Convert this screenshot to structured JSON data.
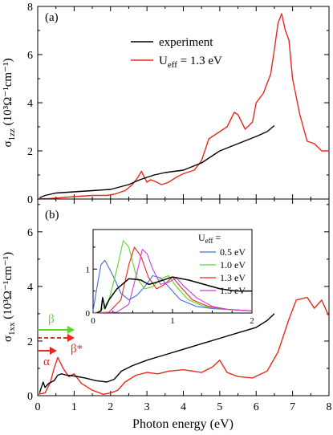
{
  "figure": {
    "xlabel": "Photon energy (eV)",
    "xticks": [
      "0",
      "1",
      "2",
      "3",
      "4",
      "5",
      "6",
      "7",
      "8"
    ]
  },
  "colors": {
    "experiment": "#000000",
    "calc": "#e8281e",
    "u05": "#3a6fd8",
    "u10": "#5ad82a",
    "u13": "#e8281e",
    "u15": "#d03ad8",
    "beta_arrow": "#5ad82a",
    "alpha_arrow": "#e8281e"
  },
  "panel_a": {
    "label": "(a)",
    "ylabel_main": "σ",
    "ylabel_sub": "1zz",
    "ylabel_rest": " (10³Ω⁻¹cm⁻¹)",
    "yticks": [
      "0",
      "2",
      "4",
      "6",
      "8"
    ],
    "legend": {
      "experiment": "experiment",
      "calc_pre": "U",
      "calc_sub": "eff",
      "calc_post": " = 1.3 eV"
    }
  },
  "panel_b": {
    "label": "(b)",
    "ylabel_main": "σ",
    "ylabel_sub": "1xx",
    "ylabel_rest": " (10³Ω⁻¹cm⁻¹)",
    "yticks": [
      "0",
      "2",
      "4",
      "6"
    ],
    "markers": {
      "beta": "β",
      "beta_star": "β*",
      "alpha": "α"
    }
  },
  "inset": {
    "title_pre": "U",
    "title_sub": "eff",
    "title_post": " =",
    "legend": [
      "0.5 eV",
      "1.0 eV",
      "1.3 eV",
      "1.5 eV"
    ],
    "xticks": [
      "0",
      "1",
      "2"
    ],
    "yticks": [
      "0",
      "1"
    ]
  },
  "chart_data": [
    {
      "type": "line",
      "panel": "(a)",
      "xlim": [
        0,
        8
      ],
      "ylim": [
        0,
        8
      ],
      "series": [
        {
          "name": "experiment",
          "x": [
            0.05,
            0.2,
            0.5,
            1.0,
            1.5,
            2.0,
            2.5,
            2.8,
            3.0,
            3.2,
            3.5,
            4.0,
            4.5,
            5.0,
            5.5,
            6.0,
            6.3,
            6.5
          ],
          "y": [
            0.05,
            0.15,
            0.25,
            0.3,
            0.35,
            0.4,
            0.6,
            0.8,
            0.9,
            1.0,
            1.1,
            1.2,
            1.5,
            2.0,
            2.3,
            2.6,
            2.8,
            3.05
          ]
        },
        {
          "name": "U_eff = 1.3 eV",
          "x": [
            0.0,
            0.3,
            0.6,
            1.0,
            1.5,
            1.9,
            2.1,
            2.4,
            2.6,
            2.75,
            2.85,
            3.0,
            3.1,
            3.2,
            3.4,
            3.6,
            3.8,
            4.0,
            4.3,
            4.5,
            4.7,
            4.9,
            5.0,
            5.2,
            5.4,
            5.5,
            5.7,
            5.9,
            6.0,
            6.2,
            6.4,
            6.5,
            6.6,
            6.7,
            6.8,
            6.9,
            7.0,
            7.2,
            7.4,
            7.6,
            7.8,
            8.0
          ],
          "y": [
            0.0,
            0.02,
            0.05,
            0.1,
            0.15,
            0.15,
            0.2,
            0.35,
            0.6,
            0.9,
            1.15,
            0.7,
            0.8,
            0.75,
            0.6,
            0.7,
            0.9,
            1.05,
            1.2,
            1.6,
            2.5,
            2.7,
            2.8,
            3.0,
            3.6,
            3.5,
            2.9,
            3.2,
            4.0,
            4.4,
            5.2,
            6.2,
            7.3,
            7.7,
            7.0,
            6.6,
            5.0,
            3.5,
            2.4,
            2.3,
            2.0,
            2.0
          ]
        }
      ]
    },
    {
      "type": "line",
      "panel": "(b)",
      "xlim": [
        0,
        8
      ],
      "ylim": [
        0,
        7.2
      ],
      "series": [
        {
          "name": "experiment",
          "x": [
            0.05,
            0.1,
            0.15,
            0.2,
            0.3,
            0.45,
            0.55,
            0.65,
            0.8,
            1.0,
            1.3,
            1.6,
            1.9,
            2.1,
            2.3,
            2.6,
            3.0,
            3.5,
            4.0,
            4.5,
            5.0,
            5.5,
            6.0,
            6.3,
            6.5
          ],
          "y": [
            0.1,
            0.3,
            0.5,
            0.3,
            0.45,
            0.55,
            0.75,
            0.8,
            0.75,
            0.72,
            0.65,
            0.55,
            0.5,
            0.6,
            0.9,
            1.1,
            1.3,
            1.5,
            1.7,
            1.9,
            2.1,
            2.3,
            2.5,
            2.75,
            3.0
          ]
        },
        {
          "name": "U_eff = 1.3 eV",
          "x": [
            0.0,
            0.2,
            0.35,
            0.45,
            0.55,
            0.7,
            0.85,
            1.0,
            1.2,
            1.5,
            1.8,
            2.0,
            2.2,
            2.4,
            2.7,
            3.0,
            3.3,
            3.6,
            4.0,
            4.5,
            4.8,
            5.0,
            5.2,
            5.5,
            5.9,
            6.3,
            6.6,
            6.9,
            7.1,
            7.4,
            7.6,
            7.8,
            8.0
          ],
          "y": [
            0.05,
            0.1,
            0.5,
            1.0,
            1.4,
            1.0,
            0.7,
            0.8,
            0.45,
            0.2,
            0.05,
            0.1,
            0.2,
            0.5,
            0.75,
            0.85,
            0.8,
            0.9,
            0.95,
            0.85,
            1.05,
            1.3,
            0.85,
            0.7,
            0.65,
            0.9,
            1.6,
            2.8,
            3.5,
            3.6,
            3.2,
            3.5,
            2.9
          ]
        }
      ]
    },
    {
      "type": "line",
      "panel": "inset",
      "xlim": [
        0,
        2
      ],
      "ylim": [
        0,
        1.9
      ],
      "series": [
        {
          "name": "experiment",
          "x": [
            0.05,
            0.1,
            0.12,
            0.15,
            0.2,
            0.3,
            0.45,
            0.6,
            0.7,
            0.8,
            1.0,
            1.2,
            1.4,
            1.6,
            1.8,
            2.0
          ],
          "y": [
            0.0,
            0.05,
            0.35,
            0.1,
            0.3,
            0.55,
            0.78,
            0.75,
            0.65,
            0.7,
            0.82,
            0.75,
            0.65,
            0.55,
            0.5,
            0.5
          ]
        },
        {
          "name": "0.5 eV",
          "x": [
            0.0,
            0.05,
            0.1,
            0.15,
            0.25,
            0.35,
            0.45,
            0.55,
            0.65,
            0.75,
            0.85,
            0.95,
            1.1,
            1.3,
            1.5,
            2.0
          ],
          "y": [
            0.05,
            0.6,
            1.1,
            1.2,
            0.85,
            0.45,
            0.3,
            0.4,
            0.6,
            0.85,
            0.8,
            0.6,
            0.3,
            0.15,
            0.1,
            0.05
          ]
        },
        {
          "name": "1.0 eV",
          "x": [
            0.0,
            0.1,
            0.2,
            0.3,
            0.38,
            0.45,
            0.55,
            0.65,
            0.75,
            0.85,
            0.95,
            1.05,
            1.2,
            1.4,
            1.7,
            2.0
          ],
          "y": [
            0.0,
            0.05,
            0.3,
            1.0,
            1.65,
            1.5,
            0.8,
            0.55,
            0.6,
            0.78,
            0.85,
            0.6,
            0.3,
            0.15,
            0.08,
            0.05
          ]
        },
        {
          "name": "1.3 eV",
          "x": [
            0.0,
            0.2,
            0.35,
            0.45,
            0.52,
            0.6,
            0.7,
            0.8,
            0.9,
            1.0,
            1.1,
            1.25,
            1.45,
            1.7,
            2.0
          ],
          "y": [
            0.0,
            0.02,
            0.3,
            1.1,
            1.5,
            1.3,
            0.8,
            0.55,
            0.65,
            0.82,
            0.6,
            0.3,
            0.15,
            0.08,
            0.05
          ]
        },
        {
          "name": "1.5 eV",
          "x": [
            0.0,
            0.3,
            0.45,
            0.55,
            0.62,
            0.68,
            0.75,
            0.85,
            0.95,
            1.05,
            1.15,
            1.3,
            1.5,
            1.7,
            2.0
          ],
          "y": [
            0.0,
            0.02,
            0.2,
            0.9,
            1.45,
            1.35,
            1.0,
            0.65,
            0.7,
            0.8,
            0.6,
            0.35,
            0.15,
            0.08,
            0.05
          ]
        }
      ]
    }
  ]
}
